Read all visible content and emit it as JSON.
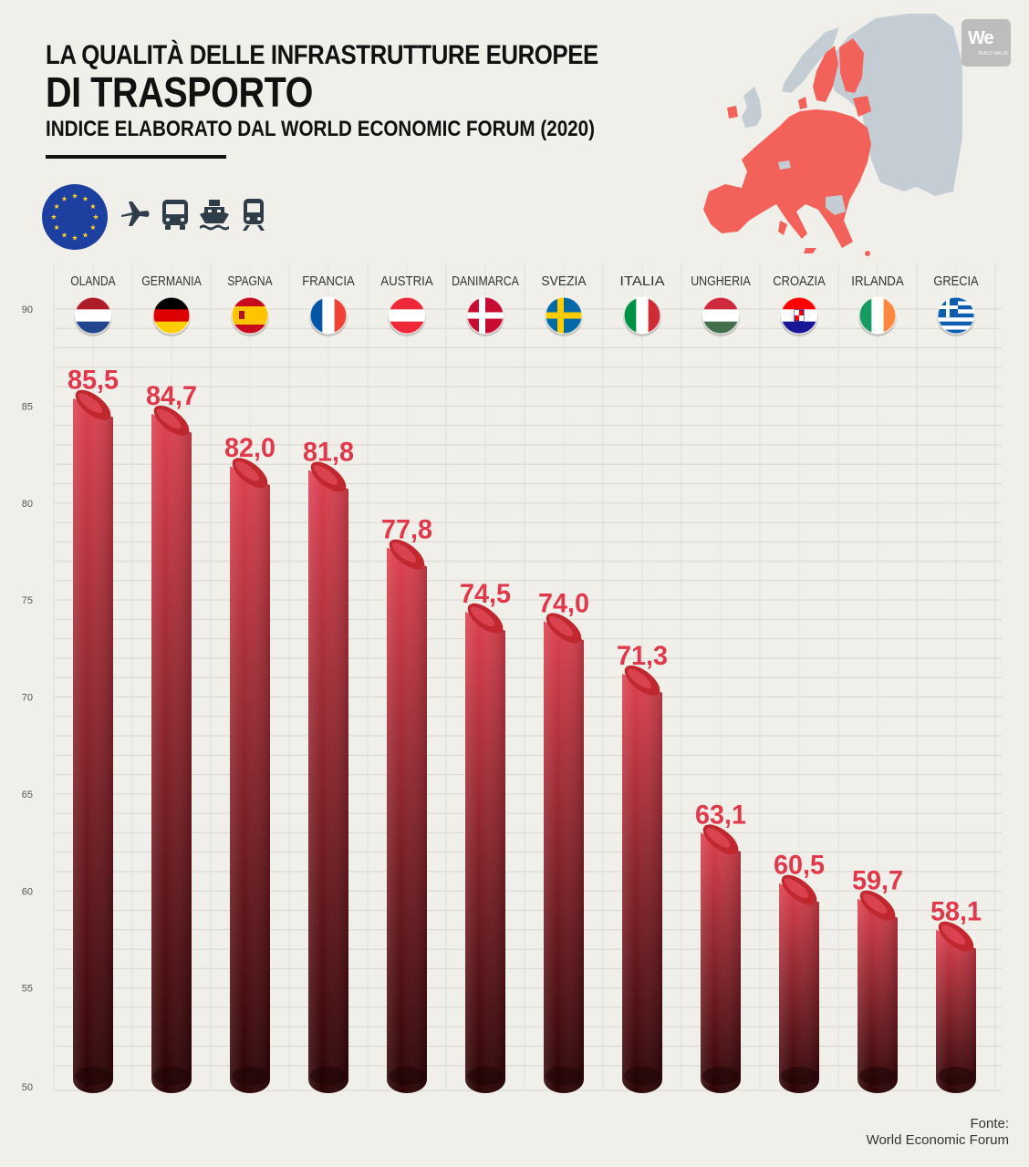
{
  "header": {
    "title_line1": "LA QUALITÀ DELLE INFRASTRUTTURE EUROPEE",
    "title_line2": "DI TRASPORTO",
    "subtitle": "INDICE ELABORATO DAL WORLD ECONOMIC FORUM (2020)"
  },
  "logo": {
    "text": "We",
    "subtext": "BUILD VALUE"
  },
  "icons": [
    "eu-flag-icon",
    "airplane-icon",
    "bus-icon",
    "ship-icon",
    "train-icon"
  ],
  "colors": {
    "accent": "#e0394b",
    "bar_top": "#de4150",
    "bar_bottom": "#2a0304",
    "eu_blue": "#1d3fa0",
    "map_highlight": "#f2625a",
    "map_other": "#c4ccd4"
  },
  "chart_data": {
    "type": "bar",
    "categories": [
      "OLANDA",
      "GERMANIA",
      "SPAGNA",
      "FRANCIA",
      "AUSTRIA",
      "DANIMARCA",
      "SVEZIA",
      "ITALIA",
      "UNGHERIA",
      "CROAZIA",
      "IRLANDA",
      "GRECIA"
    ],
    "values": [
      85.5,
      84.7,
      82.0,
      81.8,
      77.8,
      74.5,
      74.0,
      71.3,
      63.1,
      60.5,
      59.7,
      58.1
    ],
    "value_labels": [
      "85,5",
      "84,7",
      "82,0",
      "81,8",
      "77,8",
      "74,5",
      "74,0",
      "71,3",
      "63,1",
      "60,5",
      "59,7",
      "58,1"
    ],
    "ylim": [
      50,
      90
    ],
    "yticks": [
      50,
      55,
      60,
      65,
      70,
      75,
      80,
      85,
      90
    ],
    "grid": true,
    "flags": [
      "nl",
      "de",
      "es",
      "fr",
      "at",
      "dk",
      "se",
      "it",
      "hu",
      "hr",
      "ie",
      "gr"
    ]
  },
  "source": {
    "line1": "Fonte:",
    "line2": "World Economic Forum"
  }
}
